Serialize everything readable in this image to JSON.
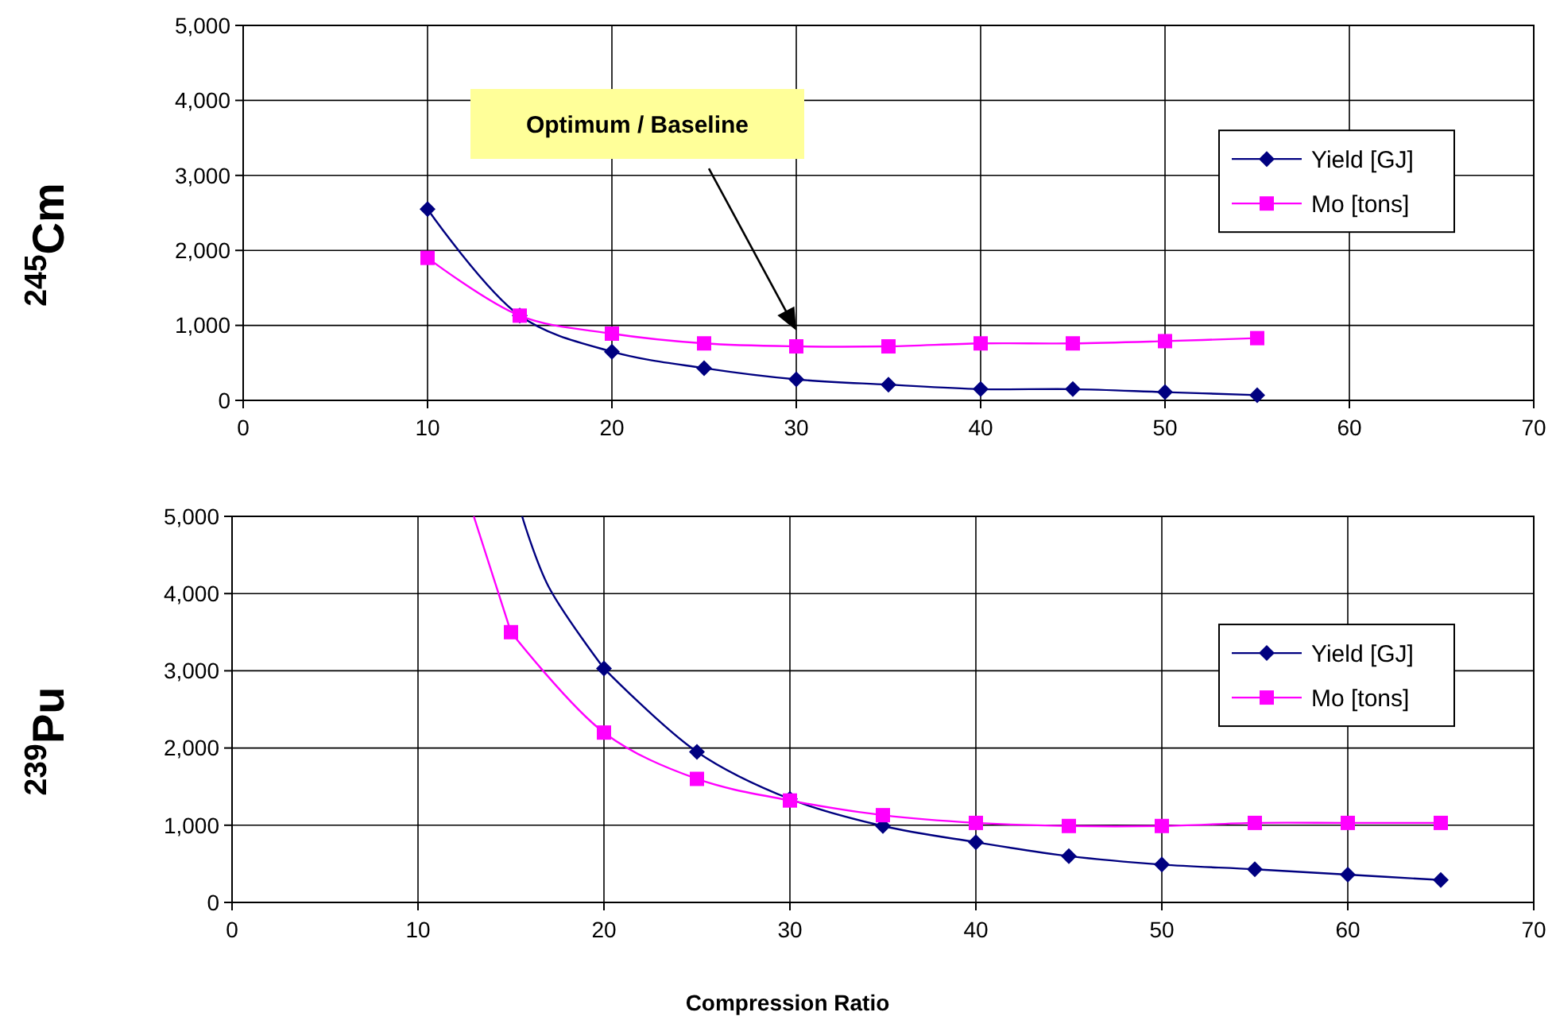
{
  "chart_data": [
    {
      "type": "line",
      "ylabel": "$^{245}$Cm",
      "xlim": [
        0,
        70
      ],
      "xticks": [
        0,
        10,
        20,
        30,
        40,
        50,
        60,
        70
      ],
      "ylim": [
        0,
        5000
      ],
      "yticks": [
        0,
        {
          "value": 1000,
          "label": "1,000"
        },
        {
          "value": 2000,
          "label": "2,000"
        },
        {
          "value": 3000,
          "label": "3,000"
        },
        {
          "value": 4000,
          "label": "4,000"
        },
        {
          "value": 5000,
          "label": "5,000"
        }
      ],
      "grid": true,
      "legend": "right",
      "series": [
        {
          "name": "Yield [GJ]",
          "color": "#000080",
          "marker": "diamond",
          "x": [
            10,
            15,
            20,
            25,
            30,
            35,
            40,
            45,
            50,
            55
          ],
          "values": [
            2550,
            1130,
            650,
            430,
            280,
            210,
            150,
            150,
            110,
            70
          ]
        },
        {
          "name": "Mo [tons]",
          "color": "#ff00ff",
          "marker": "square",
          "x": [
            10,
            15,
            20,
            25,
            30,
            35,
            40,
            45,
            50,
            55
          ],
          "values": [
            1900,
            1130,
            890,
            760,
            720,
            720,
            760,
            760,
            790,
            830
          ]
        }
      ],
      "annotations": [
        "Optimum / Baseline"
      ]
    },
    {
      "type": "line",
      "ylabel": "$^{239}$Pu",
      "xlabel": "Compression Ratio",
      "xlim": [
        0,
        70
      ],
      "xticks": [
        0,
        10,
        20,
        30,
        40,
        50,
        60,
        70
      ],
      "ylim": [
        0,
        5000
      ],
      "yticks": [
        0,
        {
          "value": 1000,
          "label": "1,000"
        },
        {
          "value": 2000,
          "label": "2,000"
        },
        {
          "value": 3000,
          "label": "3,000"
        },
        {
          "value": 4000,
          "label": "4,000"
        },
        {
          "value": 5000,
          "label": "5,000"
        }
      ],
      "grid": true,
      "legend": "right",
      "series": [
        {
          "name": "Yield [GJ]",
          "color": "#000080",
          "marker": "diamond",
          "x": [
            20,
            25,
            30,
            35,
            40,
            45,
            50,
            55,
            60,
            65
          ],
          "values": [
            3030,
            1950,
            1340,
            990,
            780,
            600,
            490,
            430,
            360,
            290
          ]
        },
        {
          "name": "Mo [tons]",
          "color": "#ff00ff",
          "marker": "square",
          "x": [
            15,
            20,
            25,
            30,
            35,
            40,
            45,
            50,
            55,
            60,
            65
          ],
          "values": [
            3500,
            2200,
            1600,
            1320,
            1130,
            1030,
            990,
            990,
            1030,
            1030,
            1030
          ]
        },
        {
          "color": "#000080",
          "marker": "none",
          "x": [
            15.6,
            17,
            20
          ],
          "values": [
            5000,
            4100,
            3030
          ]
        },
        {
          "color": "#ff00ff",
          "marker": "none",
          "x": [
            13,
            15
          ],
          "values": [
            5000,
            3500
          ]
        }
      ]
    }
  ]
}
